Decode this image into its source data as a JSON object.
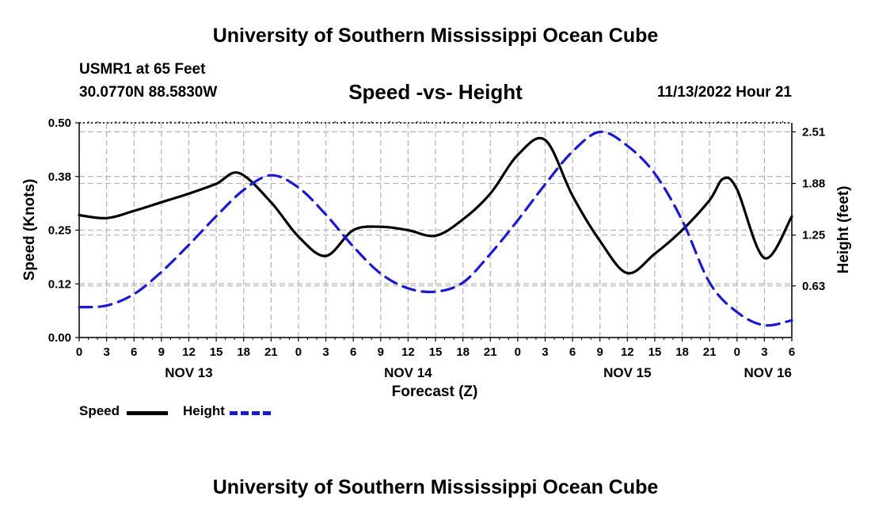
{
  "header": {
    "title": "University of Southern Mississippi Ocean Cube",
    "station": "USMR1 at 65 Feet",
    "coords": "30.0770N  88.5830W",
    "chart_title": "Speed -vs- Height",
    "timestamp": "11/13/2022 Hour 21"
  },
  "footer": {
    "title": "University of Southern Mississippi Ocean Cube"
  },
  "legend": {
    "speed_label": "Speed",
    "height_label": "Height"
  },
  "colors": {
    "speed": "#000000",
    "height": "#1a1ad0",
    "grid": "#b4b4b4"
  },
  "chart_data": {
    "type": "line",
    "title": "Speed -vs- Height",
    "xlabel": "Forecast (Z)",
    "ylabel": "Speed (Knots)",
    "y2label": "Height (feet)",
    "x_range_hours": [
      0,
      78
    ],
    "ylim": [
      0,
      0.5
    ],
    "y2lim": [
      0,
      2.62
    ],
    "x_ticks": [
      {
        "h": 0,
        "label": "0"
      },
      {
        "h": 3,
        "label": "3"
      },
      {
        "h": 6,
        "label": "6"
      },
      {
        "h": 9,
        "label": "9"
      },
      {
        "h": 12,
        "label": "12"
      },
      {
        "h": 15,
        "label": "15"
      },
      {
        "h": 18,
        "label": "18"
      },
      {
        "h": 21,
        "label": "21"
      },
      {
        "h": 24,
        "label": "0"
      },
      {
        "h": 27,
        "label": "3"
      },
      {
        "h": 30,
        "label": "6"
      },
      {
        "h": 33,
        "label": "9"
      },
      {
        "h": 36,
        "label": "12"
      },
      {
        "h": 39,
        "label": "15"
      },
      {
        "h": 42,
        "label": "18"
      },
      {
        "h": 45,
        "label": "21"
      },
      {
        "h": 48,
        "label": "0"
      },
      {
        "h": 51,
        "label": "3"
      },
      {
        "h": 54,
        "label": "6"
      },
      {
        "h": 57,
        "label": "9"
      },
      {
        "h": 60,
        "label": "12"
      },
      {
        "h": 63,
        "label": "15"
      },
      {
        "h": 66,
        "label": "18"
      },
      {
        "h": 69,
        "label": "21"
      },
      {
        "h": 72,
        "label": "0"
      },
      {
        "h": 75,
        "label": "3"
      },
      {
        "h": 78,
        "label": "6"
      }
    ],
    "day_labels": [
      {
        "h": 12,
        "label": "NOV 13"
      },
      {
        "h": 36,
        "label": "NOV 14"
      },
      {
        "h": 60,
        "label": "NOV 15"
      },
      {
        "h": 78,
        "label": "NOV 16"
      }
    ],
    "y_ticks": [
      "0.00",
      "0.12",
      "0.25",
      "0.38",
      "0.50"
    ],
    "y_tick_values": [
      0,
      0.125,
      0.25,
      0.375,
      0.5
    ],
    "y2_ticks": [
      "0.63",
      "1.25",
      "1.88",
      "2.51"
    ],
    "y2_tick_values": [
      0.63,
      1.25,
      1.88,
      2.51
    ],
    "series": [
      {
        "name": "Speed",
        "axis": "left",
        "style": "solid",
        "x": [
          0,
          3,
          6,
          9,
          12,
          15,
          17.5,
          21,
          24,
          27,
          30,
          33,
          36,
          39,
          42,
          45,
          48,
          51,
          54,
          57,
          60,
          63,
          66,
          69,
          70.5,
          72,
          75,
          78
        ],
        "values": [
          0.285,
          0.278,
          0.295,
          0.315,
          0.335,
          0.358,
          0.383,
          0.315,
          0.235,
          0.19,
          0.25,
          0.258,
          0.25,
          0.237,
          0.275,
          0.335,
          0.425,
          0.46,
          0.33,
          0.225,
          0.15,
          0.195,
          0.25,
          0.32,
          0.37,
          0.345,
          0.185,
          0.282
        ]
      },
      {
        "name": "Height",
        "axis": "right",
        "style": "dashed",
        "x": [
          0,
          3,
          6,
          9,
          12,
          15,
          18,
          21,
          24,
          27,
          30,
          33,
          36,
          39,
          42,
          45,
          48,
          51,
          54,
          57,
          60,
          63,
          66,
          69,
          72,
          75,
          78
        ],
        "values": [
          0.37,
          0.39,
          0.53,
          0.8,
          1.13,
          1.48,
          1.8,
          1.98,
          1.83,
          1.5,
          1.11,
          0.78,
          0.6,
          0.56,
          0.67,
          1.02,
          1.43,
          1.87,
          2.27,
          2.51,
          2.34,
          2.0,
          1.43,
          0.67,
          0.31,
          0.15,
          0.21
        ]
      }
    ]
  }
}
